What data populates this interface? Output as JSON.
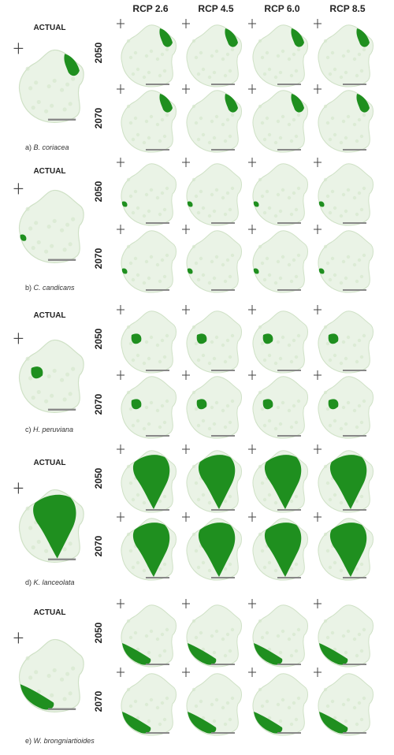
{
  "columns": [
    "RCP 2.6",
    "RCP 4.5",
    "RCP 6.0",
    "RCP 8.5"
  ],
  "years": [
    "2050",
    "2070"
  ],
  "actual_label": "ACTUAL",
  "species": [
    {
      "letter": "a)",
      "name": "B. coriacea",
      "spread": "northeast"
    },
    {
      "letter": "b)",
      "name": "C. candicans",
      "spread": "southwest-small"
    },
    {
      "letter": "c)",
      "name": "H. peruviana",
      "spread": "west-center"
    },
    {
      "letter": "d)",
      "name": "K. lanceolata",
      "spread": "north-large"
    },
    {
      "letter": "e)",
      "name": "W. brongniartioides",
      "spread": "southwest-large"
    }
  ],
  "colors": {
    "shape": "#eaf3e6",
    "shape_edge": "#cfe1c6",
    "habitat": "#1f8f1f",
    "text": "#222222"
  },
  "icons": {
    "north": "north-arrow-icon",
    "scale": "scale-bar-icon"
  }
}
